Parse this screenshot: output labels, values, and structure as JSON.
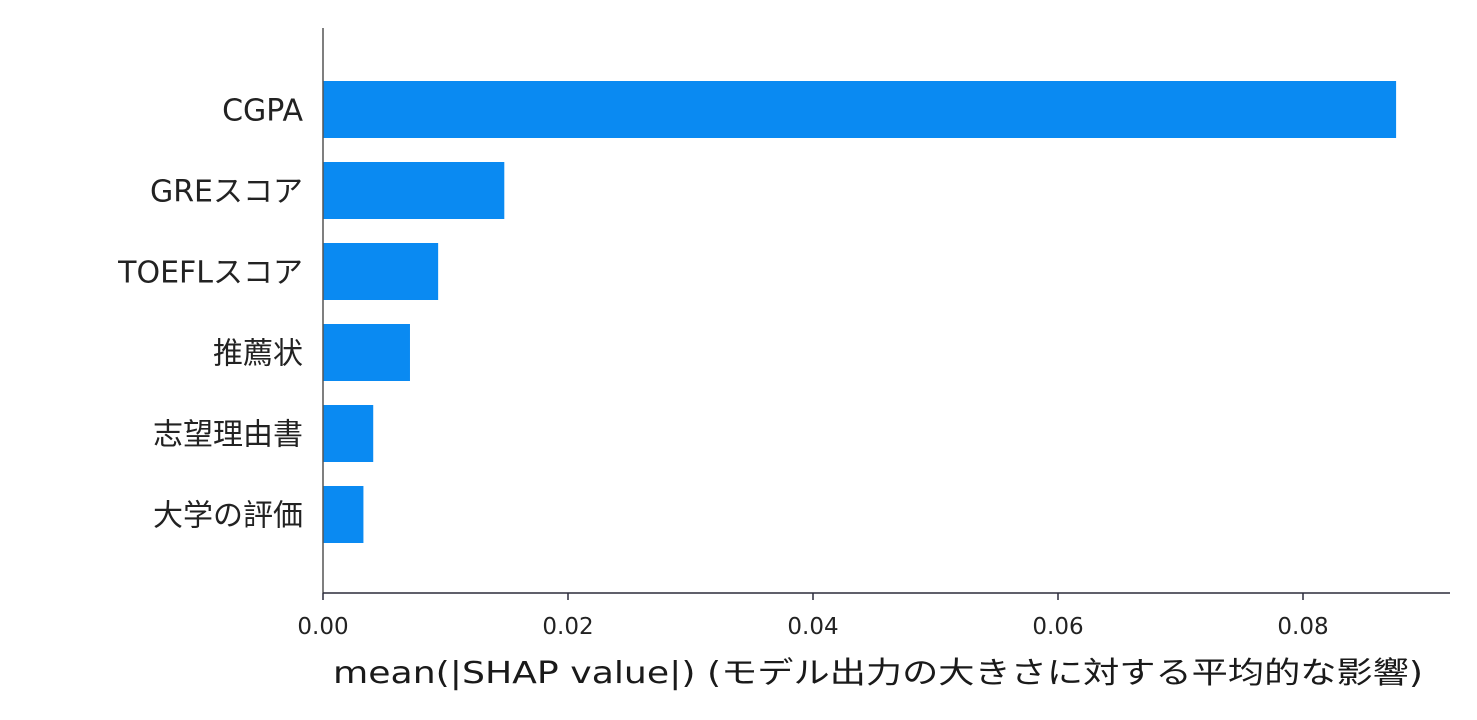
{
  "chart_data": {
    "type": "bar",
    "orientation": "horizontal",
    "categories": [
      "CGPA",
      "GREスコア",
      "TOEFLスコア",
      "推薦状",
      "志望理由書",
      "大学の評価"
    ],
    "values": [
      0.0876,
      0.0148,
      0.0094,
      0.0071,
      0.0041,
      0.0033
    ],
    "xlabel": "mean(|SHAP value|) (モデル出力の大きさに対する平均的な影響)",
    "ylabel": "",
    "title": "",
    "xlim": [
      0,
      0.092
    ],
    "xticks": [
      0.0,
      0.02,
      0.04,
      0.06,
      0.08
    ],
    "xtick_labels": [
      "0.00",
      "0.02",
      "0.04",
      "0.06",
      "0.08"
    ],
    "grid": false,
    "bar_color": "#0a8af2"
  }
}
